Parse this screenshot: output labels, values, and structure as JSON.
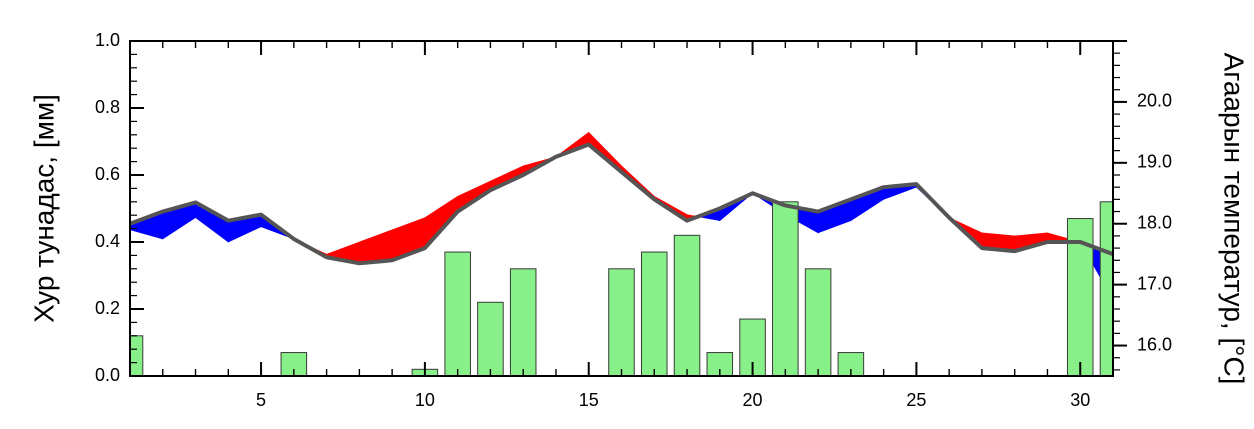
{
  "chart_data": {
    "type": "bar",
    "ylabel_left": "Хур тунадас, [мм]",
    "ylabel_right": "Агаарын температур, [°C]",
    "xlim": [
      1,
      31
    ],
    "ylim_left": [
      0.0,
      1.0
    ],
    "ylim_right": [
      15.5,
      21.0
    ],
    "x_ticks": [
      5,
      10,
      15,
      20,
      25,
      30
    ],
    "x_tick_labels": [
      "5",
      "10",
      "15",
      "20",
      "25",
      "30"
    ],
    "y_left_ticks": [
      0.0,
      0.2,
      0.4,
      0.6,
      0.8,
      1.0
    ],
    "y_left_tick_labels": [
      "0.0",
      "0.2",
      "0.4",
      "0.6",
      "0.8",
      "1.0"
    ],
    "y_right_ticks": [
      16.0,
      17.0,
      18.0,
      19.0,
      20.0
    ],
    "y_right_tick_labels": [
      "16.0",
      "17.0",
      "18.0",
      "19.0",
      "20.0"
    ],
    "colors": {
      "bar": "#88f088",
      "above": "#ff0000",
      "below": "#0000ff",
      "line": "#555555"
    },
    "precipitation": {
      "days": [
        1,
        6,
        10,
        11,
        12,
        13,
        16,
        17,
        18,
        19,
        20,
        21,
        22,
        23,
        30,
        31
      ],
      "values": [
        0.12,
        0.07,
        0.02,
        0.37,
        0.22,
        0.32,
        0.32,
        0.37,
        0.42,
        0.07,
        0.17,
        0.52,
        0.32,
        0.07,
        0.47,
        0.52
      ]
    },
    "temperature": {
      "days": [
        1,
        2,
        3,
        4,
        5,
        6,
        7,
        8,
        9,
        10,
        11,
        12,
        13,
        14,
        15,
        16,
        17,
        18,
        19,
        20,
        21,
        22,
        23,
        24,
        25,
        26,
        27,
        28,
        29,
        30,
        31
      ],
      "reference": [
        18.0,
        18.2,
        18.35,
        18.05,
        18.15,
        17.75,
        17.45,
        17.35,
        17.4,
        17.6,
        18.2,
        18.55,
        18.8,
        19.1,
        19.3,
        18.85,
        18.4,
        18.05,
        18.25,
        18.5,
        18.3,
        18.2,
        18.4,
        18.6,
        18.65,
        18.1,
        17.6,
        17.55,
        17.7,
        17.7,
        17.5
      ],
      "observed": [
        17.9,
        17.75,
        18.1,
        17.7,
        17.95,
        17.75,
        17.5,
        17.7,
        17.9,
        18.1,
        18.45,
        18.7,
        18.95,
        19.1,
        19.5,
        18.95,
        18.45,
        18.15,
        18.05,
        18.5,
        18.15,
        17.85,
        18.05,
        18.4,
        18.6,
        18.1,
        17.85,
        17.8,
        17.85,
        17.7,
        16.75
      ]
    }
  }
}
